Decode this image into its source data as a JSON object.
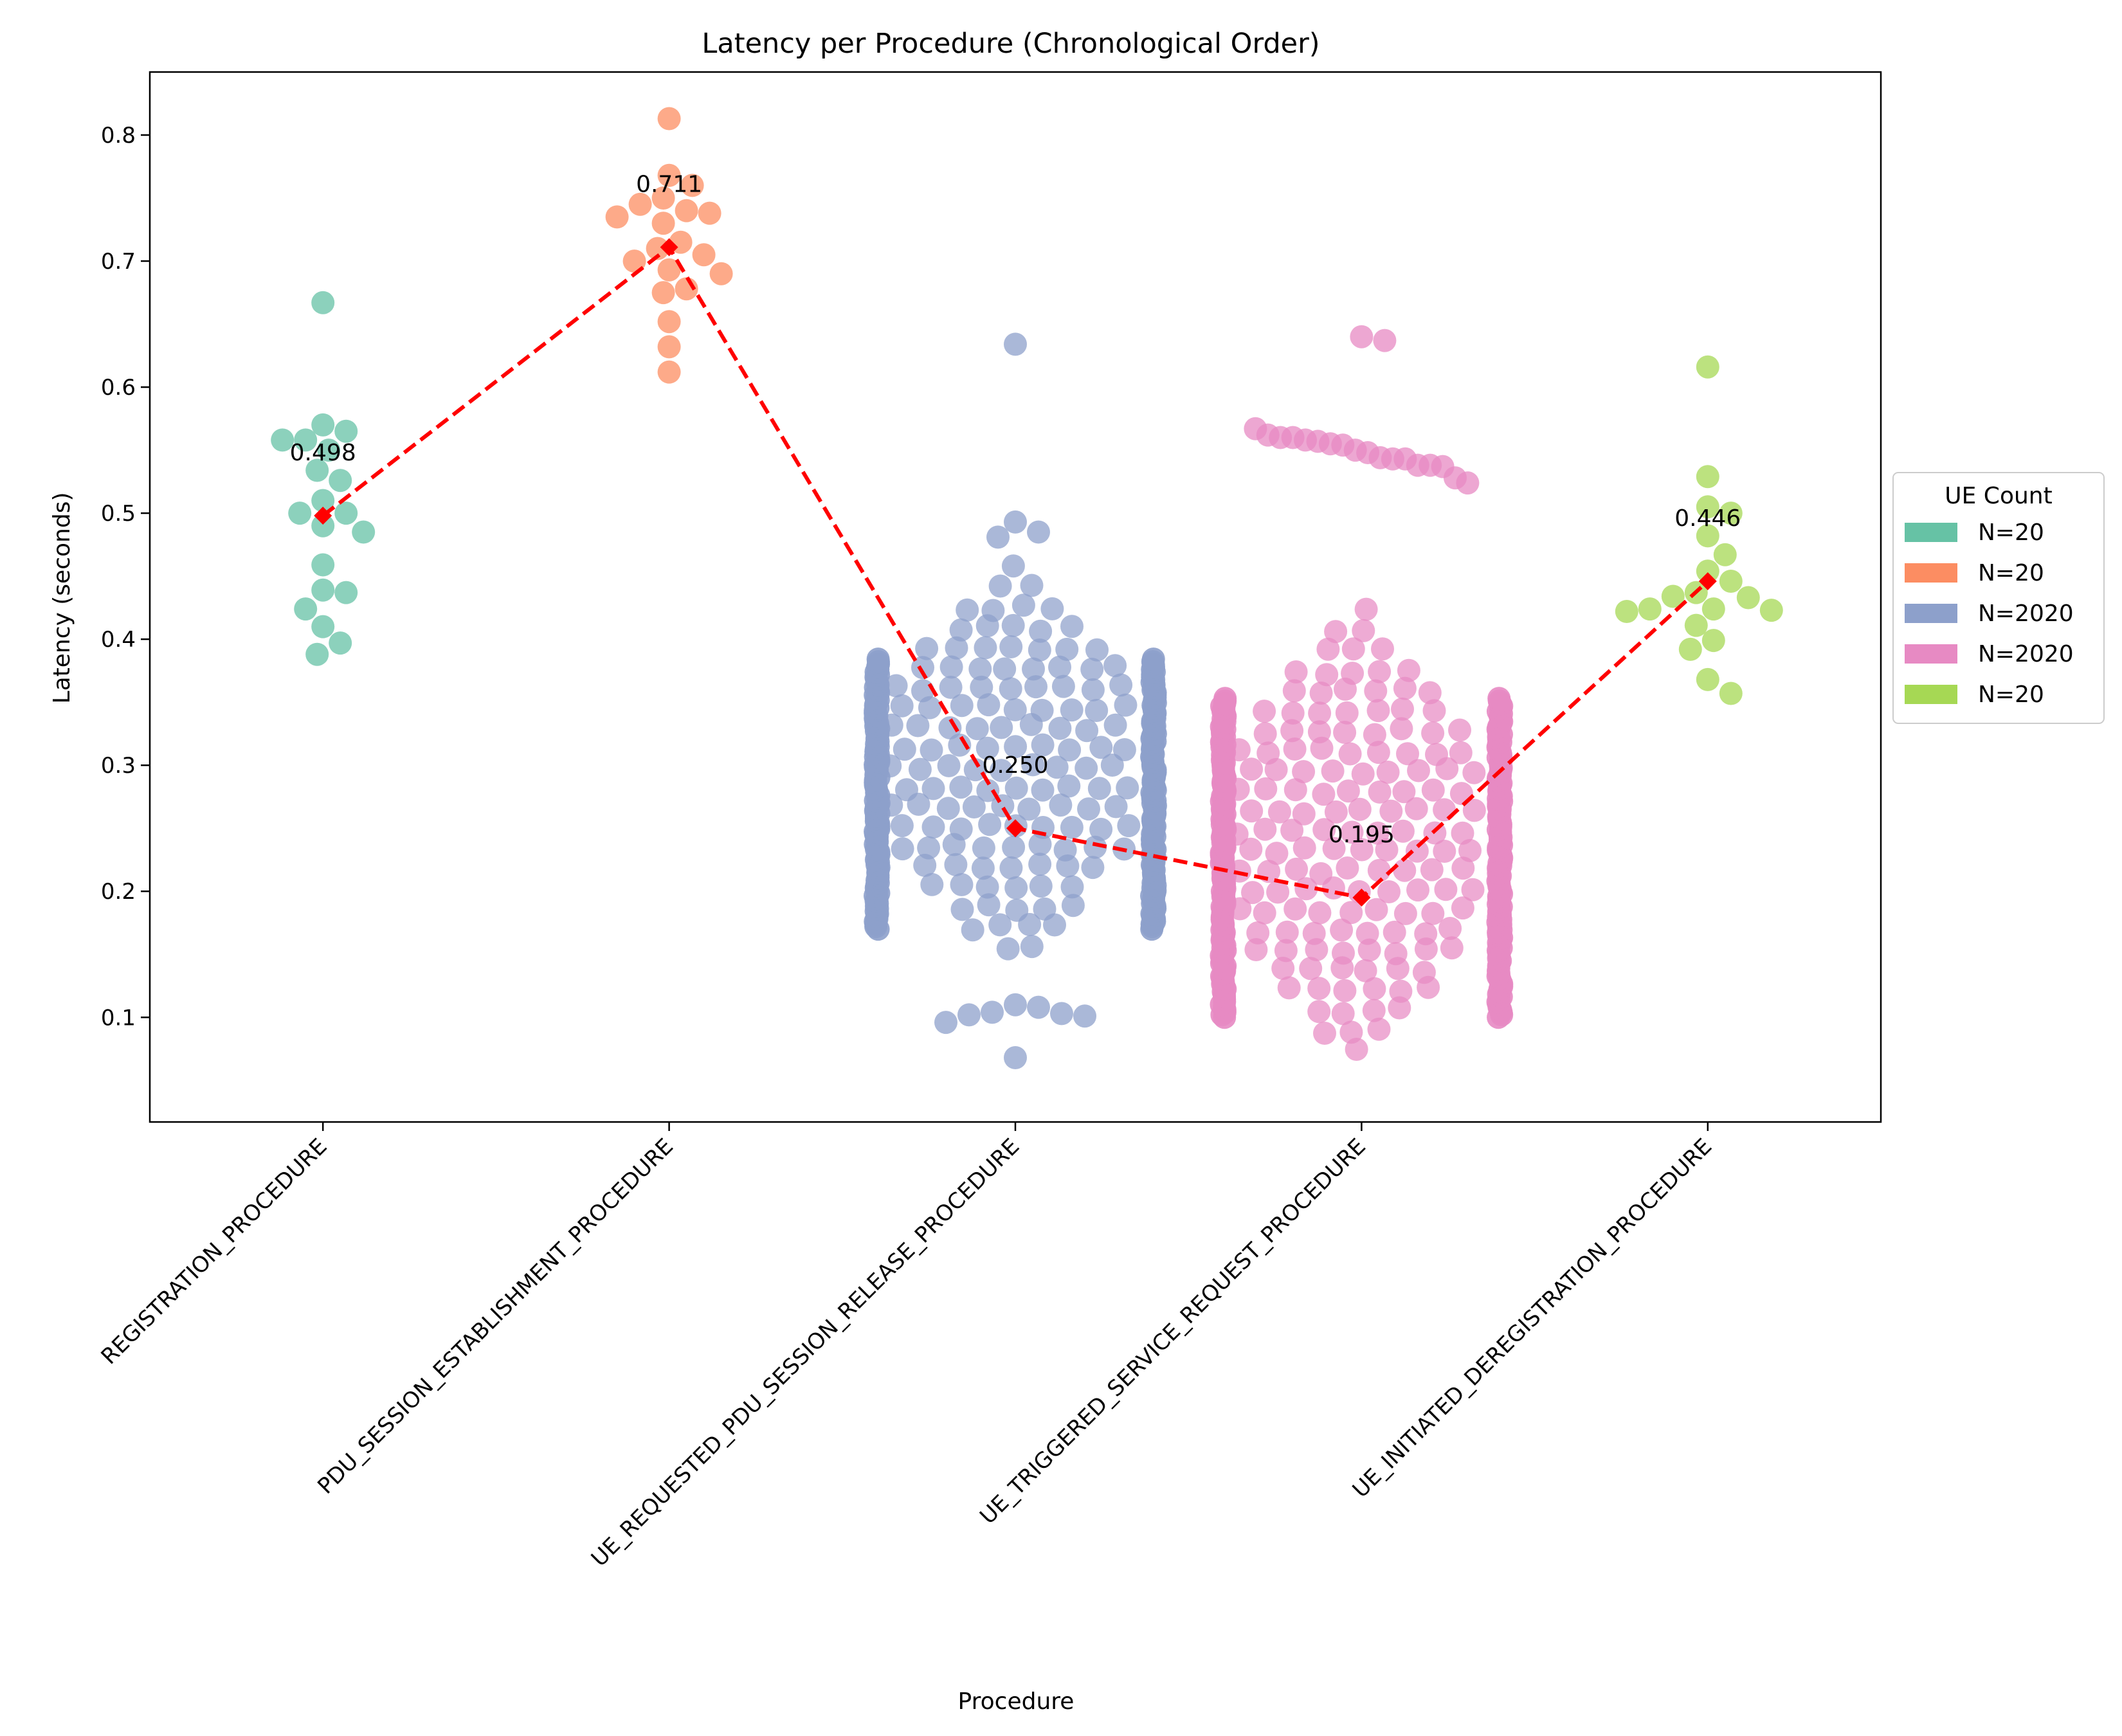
{
  "chart_data": {
    "type": "scatter",
    "subtype": "swarm-with-mean-line",
    "title": "Latency per Procedure (Chronological Order)",
    "xlabel": "Procedure",
    "ylabel": "Latency (seconds)",
    "ylim": [
      0.017,
      0.85
    ],
    "yticks": [
      0.1,
      0.2,
      0.3,
      0.4,
      0.5,
      0.6,
      0.7,
      0.8
    ],
    "grid": false,
    "categories": [
      "REGISTRATION_PROCEDURE",
      "PDU_SESSION_ESTABLISHMENT_PROCEDURE",
      "UE_REQUESTED_PDU_SESSION_RELEASE_PROCEDURE",
      "UE_TRIGGERED_SERVICE_REQUEST_PROCEDURE",
      "UE_INITIATED_DEREGISTRATION_PROCEDURE"
    ],
    "means": [
      0.498,
      0.711,
      0.25,
      0.195,
      0.446
    ],
    "mean_labels": [
      "0.498",
      "0.711",
      "0.250",
      "0.195",
      "0.446"
    ],
    "mean_line_color": "#ff0000",
    "legend": {
      "title": "UE Count",
      "placement": "center-right-outside",
      "entries": [
        {
          "label": "N=20",
          "color": "#66c2a5"
        },
        {
          "label": "N=20",
          "color": "#fc8d62"
        },
        {
          "label": "N=2020",
          "color": "#8da0cb"
        },
        {
          "label": "N=2020",
          "color": "#e78ac3"
        },
        {
          "label": "N=20",
          "color": "#a6d854"
        }
      ]
    },
    "series": [
      {
        "category": "REGISTRATION_PROCEDURE",
        "color": "#66c2a5",
        "count": 20,
        "values": [
          0.667,
          0.57,
          0.565,
          0.558,
          0.558,
          0.55,
          0.534,
          0.526,
          0.51,
          0.5,
          0.5,
          0.49,
          0.485,
          0.459,
          0.439,
          0.437,
          0.424,
          0.41,
          0.397,
          0.388
        ]
      },
      {
        "category": "PDU_SESSION_ESTABLISHMENT_PROCEDURE",
        "color": "#fc8d62",
        "count": 20,
        "values": [
          0.813,
          0.768,
          0.76,
          0.75,
          0.745,
          0.74,
          0.738,
          0.735,
          0.73,
          0.715,
          0.71,
          0.705,
          0.7,
          0.693,
          0.69,
          0.678,
          0.675,
          0.652,
          0.632,
          0.612
        ]
      },
      {
        "category": "UE_REQUESTED_PDU_SESSION_RELEASE_PROCEDURE",
        "color": "#8da0cb",
        "count": 2020,
        "outliers_high": [
          0.634,
          0.493,
          0.485,
          0.481
        ],
        "outliers_low": [
          0.11,
          0.108,
          0.104,
          0.103,
          0.102,
          0.101,
          0.096,
          0.068
        ],
        "bulk_range": [
          0.14,
          0.46
        ],
        "dense_range": [
          0.17,
          0.385
        ]
      },
      {
        "category": "UE_TRIGGERED_SERVICE_REQUEST_PROCEDURE",
        "color": "#e78ac3",
        "count": 2020,
        "outliers_high": [
          0.64,
          0.637
        ],
        "upper_cluster": [
          0.567,
          0.562,
          0.56,
          0.56,
          0.558,
          0.557,
          0.555,
          0.554,
          0.55,
          0.548,
          0.544,
          0.543,
          0.543,
          0.538,
          0.538,
          0.537,
          0.528,
          0.524
        ],
        "bulk_range": [
          0.058,
          0.43
        ],
        "dense_range": [
          0.1,
          0.355
        ]
      },
      {
        "category": "UE_INITIATED_DEREGISTRATION_PROCEDURE",
        "color": "#a6d854",
        "count": 20,
        "values": [
          0.616,
          0.529,
          0.505,
          0.5,
          0.482,
          0.467,
          0.454,
          0.446,
          0.437,
          0.434,
          0.433,
          0.424,
          0.424,
          0.423,
          0.422,
          0.411,
          0.399,
          0.392,
          0.368,
          0.357
        ]
      }
    ]
  }
}
